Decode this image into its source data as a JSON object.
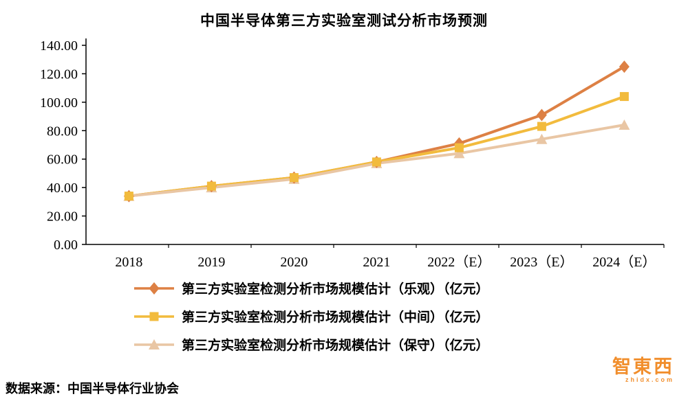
{
  "title": "中国半导体第三方实验室测试分析市场预测",
  "source": "数据来源：中国半导体行业协会",
  "watermark": {
    "main": "智東西",
    "sub": "zhidx.com"
  },
  "chart_data": {
    "type": "line",
    "title": "中国半导体第三方实验室测试分析市场预测",
    "categories": [
      "2018",
      "2019",
      "2020",
      "2021",
      "2022（E）",
      "2023（E）",
      "2024（E）"
    ],
    "series": [
      {
        "name": "第三方实验室检测分析市场规模估计（乐观）（亿元）",
        "values": [
          34,
          41,
          47,
          58,
          71,
          91,
          125
        ],
        "color": "#DD8044",
        "marker": "diamond"
      },
      {
        "name": "第三方实验室检测分析市场规模估计（中间）（亿元）",
        "values": [
          34,
          41,
          47,
          58,
          68,
          83,
          104
        ],
        "color": "#F2BB3D",
        "marker": "square"
      },
      {
        "name": "第三方实验室检测分析市场规模估计（保守）（亿元）",
        "values": [
          34,
          40,
          46,
          57,
          64,
          74,
          84
        ],
        "color": "#E9C6A4",
        "marker": "triangle"
      }
    ],
    "ylim": [
      0,
      140
    ],
    "ytick_step": 20,
    "ytick_format_decimals": 2,
    "xlabel": "",
    "ylabel": "",
    "grid": false,
    "legend_position": "bottom"
  }
}
